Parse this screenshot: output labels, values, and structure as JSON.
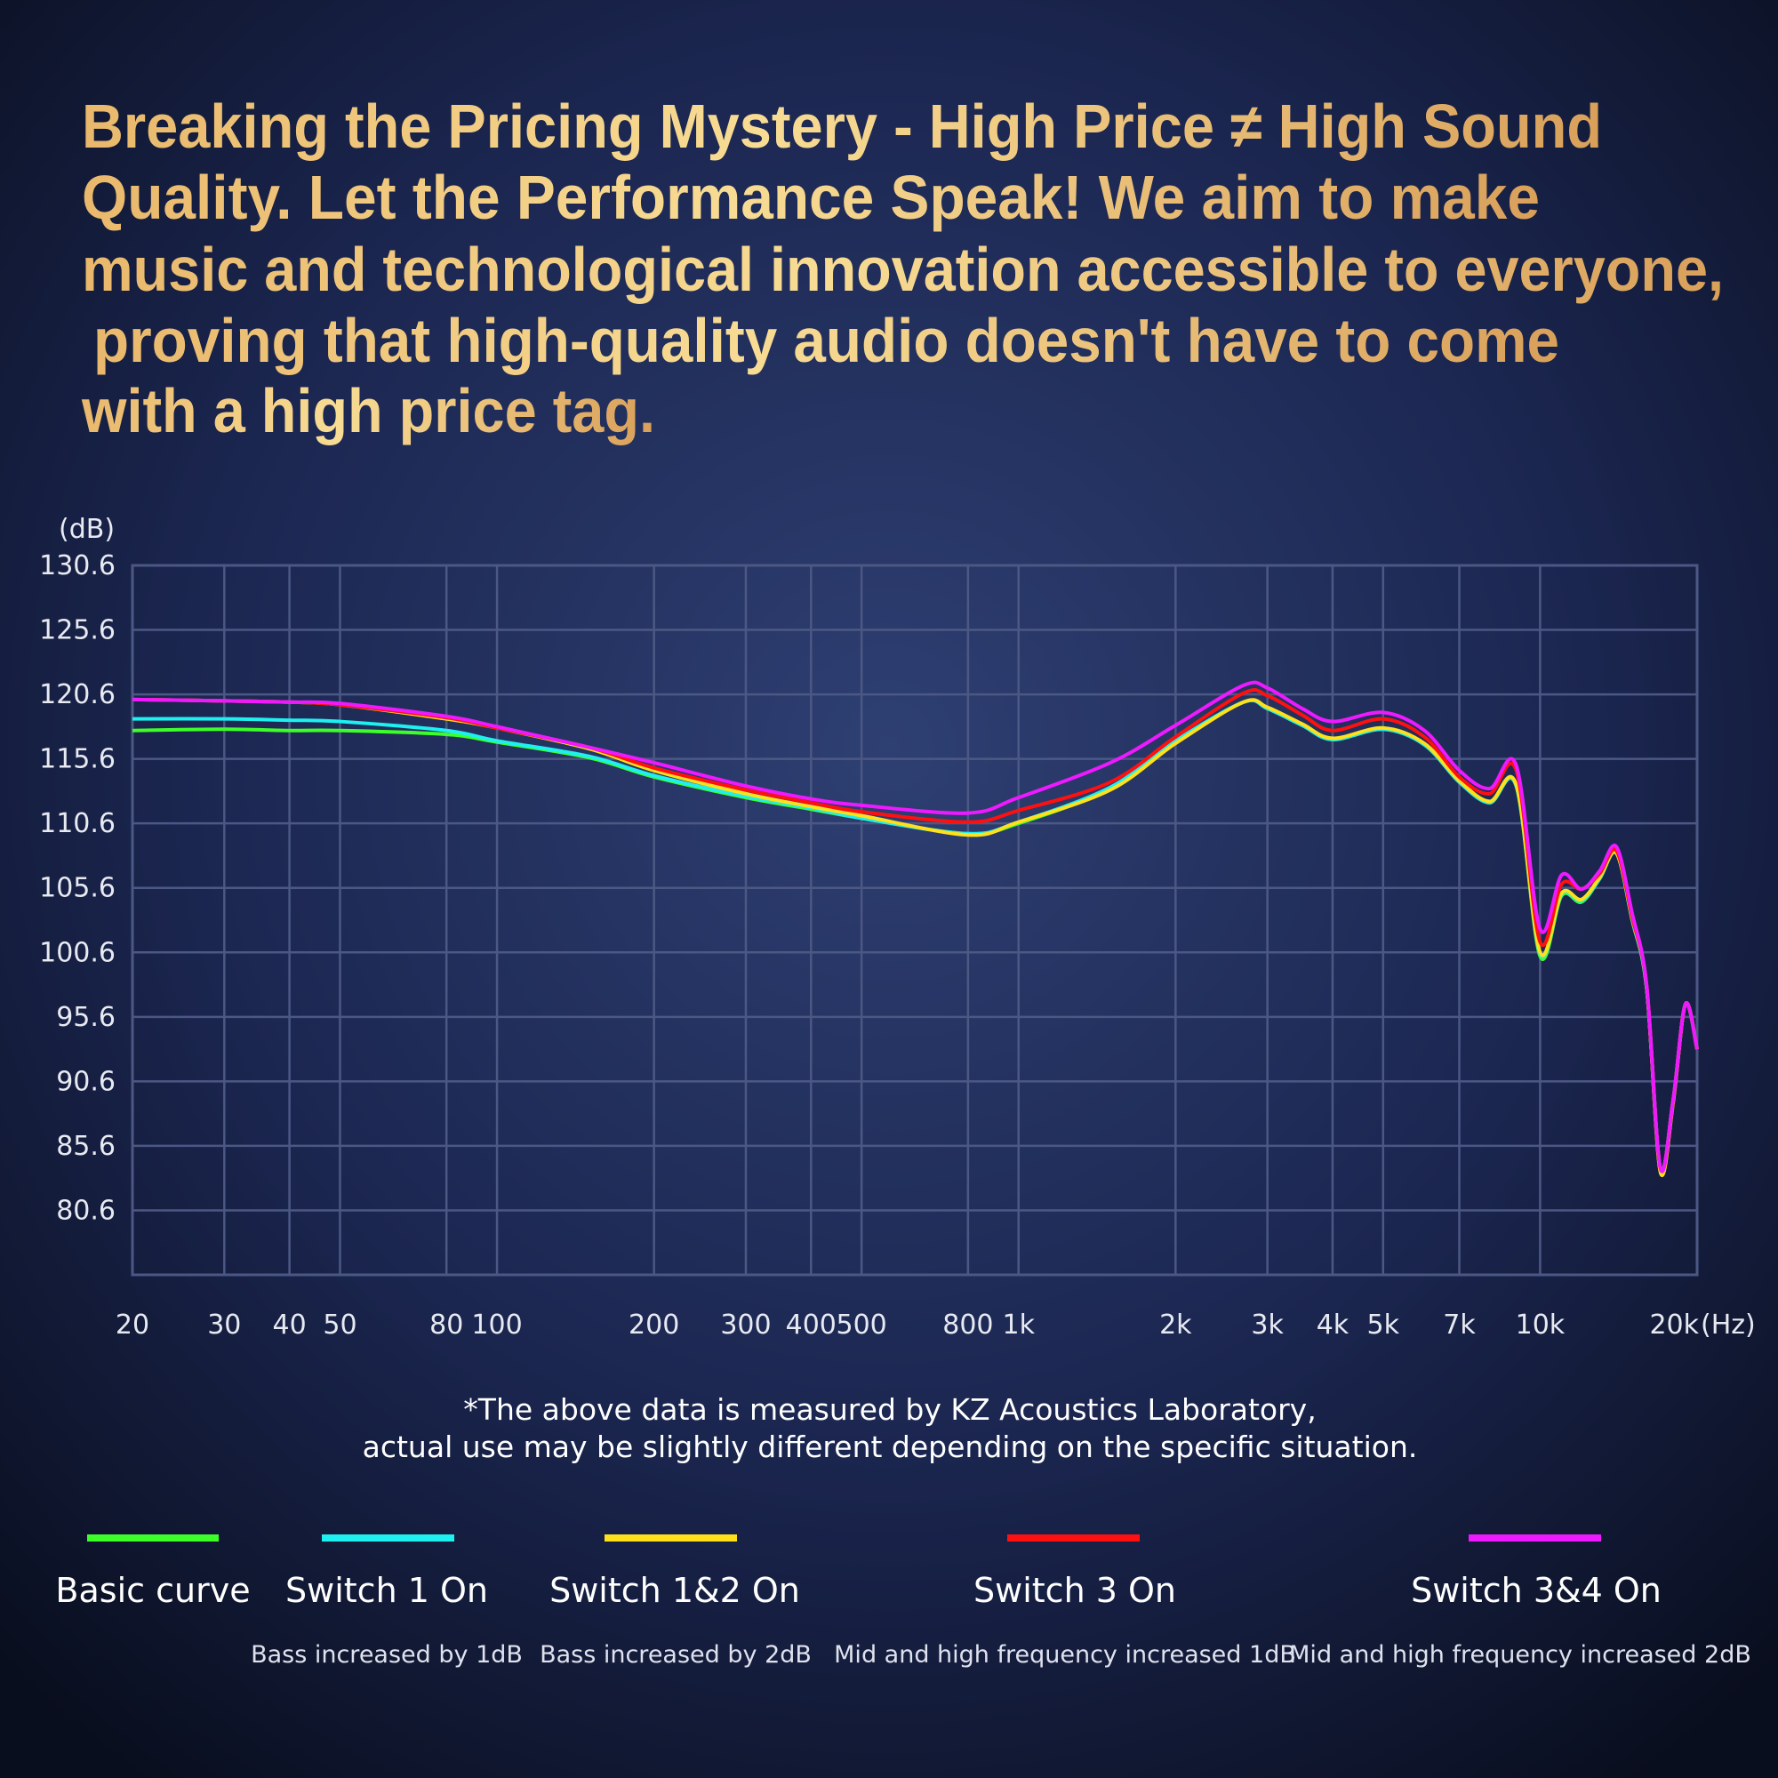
{
  "chart_data": {
    "type": "line",
    "title": [
      "Breaking the Pricing Mystery - High Price ≠ High Sound",
      "Quality. Let the Performance Speak! We aim to make",
      "music and technological innovation accessible to everyone,",
      "proving that high-quality audio doesn't have to come",
      "with a high price tag."
    ],
    "y_label": "(dB)",
    "x_label": "(Hz)",
    "log_x": true,
    "grid": true,
    "xlim": [
      20,
      20000
    ],
    "xticks": [
      20,
      30,
      40,
      50,
      80,
      100,
      200,
      300,
      400,
      500,
      800,
      {
        "value": 1000,
        "label": "1k"
      },
      {
        "value": 2000,
        "label": "2k"
      },
      {
        "value": 3000,
        "label": "3k"
      },
      {
        "value": 4000,
        "label": "4k"
      },
      {
        "value": 5000,
        "label": "5k"
      },
      {
        "value": 7000,
        "label": "7k"
      },
      {
        "value": 10000,
        "label": "10k"
      },
      {
        "value": 20000,
        "label": "20k"
      }
    ],
    "ylim": [
      75.6,
      130.6
    ],
    "yticks": [
      80.6,
      85.6,
      90.6,
      95.6,
      100.6,
      105.6,
      110.6,
      115.6,
      120.6,
      125.6,
      130.6
    ],
    "x": [
      20,
      30,
      40,
      50,
      80,
      100,
      150,
      200,
      300,
      400,
      500,
      800,
      1000,
      1500,
      2000,
      2700,
      3000,
      3500,
      4000,
      5000,
      6000,
      7000,
      8000,
      9000,
      10000,
      11000,
      12000,
      13000,
      14000,
      15000,
      16000,
      17000,
      18000,
      19000,
      20000
    ],
    "series": [
      {
        "name": "Basic curve",
        "color": "#3cff2a",
        "values": [
          117.8,
          117.9,
          117.8,
          117.8,
          117.5,
          116.9,
          115.7,
          114.2,
          112.6,
          111.7,
          111.0,
          109.8,
          110.6,
          113.3,
          116.9,
          120.0,
          119.5,
          118.2,
          117.1,
          117.9,
          116.7,
          113.8,
          112.2,
          113.5,
          100.3,
          105.0,
          104.5,
          106.3,
          108.3,
          103.2,
          97.9,
          83.9,
          89.2,
          96.6,
          93.1
        ]
      },
      {
        "name": "Switch 1 On",
        "description": "Bass increased by 1dB",
        "color": "#1ef0f0",
        "values": [
          118.7,
          118.7,
          118.6,
          118.5,
          117.8,
          117.0,
          115.8,
          114.3,
          112.7,
          111.8,
          111.0,
          109.8,
          110.7,
          113.4,
          117.0,
          120.0,
          119.5,
          118.2,
          117.1,
          117.9,
          116.7,
          113.8,
          112.2,
          113.5,
          100.5,
          105.1,
          104.6,
          106.3,
          108.3,
          103.2,
          97.9,
          83.9,
          89.2,
          96.6,
          93.1
        ]
      },
      {
        "name": "Switch 1&2 On",
        "description": "Bass increased by 2dB",
        "color": "#ffe01a",
        "values": [
          120.2,
          120.1,
          120.0,
          119.8,
          118.7,
          118.0,
          116.4,
          114.7,
          112.9,
          111.9,
          111.2,
          109.7,
          110.7,
          113.2,
          116.8,
          120.0,
          119.6,
          118.3,
          117.2,
          118.0,
          116.8,
          113.9,
          112.3,
          113.6,
          100.6,
          105.2,
          104.7,
          106.4,
          108.3,
          103.3,
          98.0,
          83.6,
          89.0,
          96.6,
          93.1
        ]
      },
      {
        "name": "Switch 3 On",
        "description": "Mid and high frequency increased 1dB",
        "color": "#ff1010",
        "values": [
          120.2,
          120.1,
          120.0,
          119.8,
          118.8,
          118.0,
          116.5,
          114.9,
          113.2,
          112.2,
          111.5,
          110.7,
          111.6,
          113.8,
          117.3,
          120.7,
          120.5,
          119.0,
          117.8,
          118.7,
          117.3,
          114.2,
          112.9,
          114.7,
          101.4,
          105.9,
          105.5,
          106.7,
          108.5,
          103.4,
          98.1,
          83.9,
          89.2,
          96.6,
          93.1
        ]
      },
      {
        "name": "Switch 3&4 On",
        "description": "Mid and high frequency increased 2dB",
        "color": "#ee1aff",
        "values": [
          120.2,
          120.1,
          120.0,
          119.9,
          118.9,
          118.1,
          116.5,
          115.3,
          113.5,
          112.5,
          112.0,
          111.4,
          112.6,
          115.3,
          118.2,
          121.3,
          121.1,
          119.5,
          118.5,
          119.2,
          117.8,
          114.7,
          113.3,
          115.1,
          102.4,
          106.6,
          105.5,
          106.9,
          108.8,
          103.7,
          98.1,
          83.9,
          89.2,
          96.6,
          93.1
        ]
      }
    ],
    "notes": [
      "*The above data is measured by KZ Acoustics Laboratory,",
      "actual use may be slightly different depending on the specific situation."
    ]
  }
}
